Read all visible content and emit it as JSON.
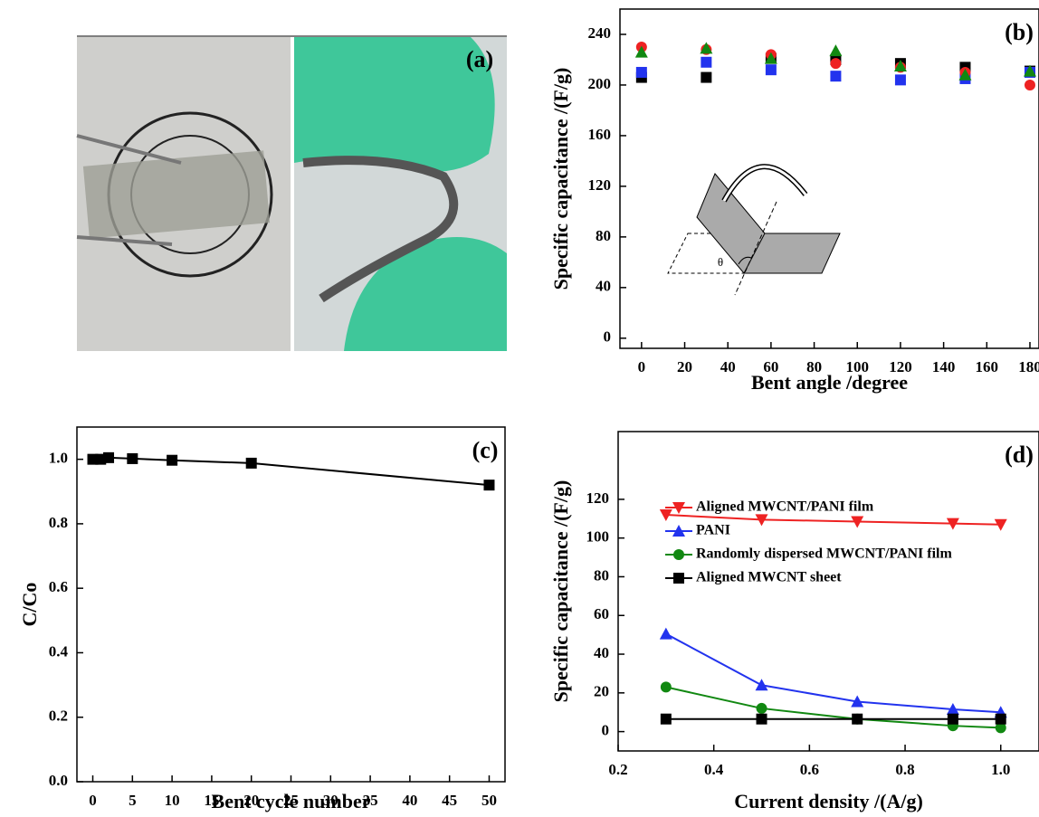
{
  "chart_data": [
    {
      "type": "image",
      "title": "(a)"
    },
    {
      "type": "scatter",
      "title": "(b)",
      "xlabel": "Bent angle /degree",
      "ylabel": "Specific capacitance /(F/g)",
      "inset_label": "θ",
      "xlim": [
        -10,
        184.2
      ],
      "xticks": [
        0,
        20,
        40,
        60,
        80,
        100,
        120,
        140,
        160,
        180
      ],
      "ylim": [
        -8,
        260
      ],
      "yticks": [
        0,
        40,
        80,
        120,
        160,
        200,
        240
      ],
      "x": [
        0,
        30,
        60,
        90,
        120,
        150,
        180
      ],
      "series": [
        {
          "color": "#000000",
          "marker": "square",
          "values": [
            206,
            206,
            221,
            220,
            217,
            214,
            211
          ]
        },
        {
          "color": "#2233ee",
          "marker": "square",
          "values": [
            210,
            218,
            212,
            207,
            204,
            205,
            210
          ]
        },
        {
          "color": "#ee2222",
          "marker": "circle",
          "values": [
            230,
            228,
            224,
            217,
            214,
            210,
            200
          ]
        },
        {
          "color": "#118811",
          "marker": "triangle",
          "values": [
            226,
            229,
            221,
            227,
            215,
            208,
            211
          ]
        }
      ]
    },
    {
      "type": "line",
      "title": "(c)",
      "xlabel": "Bent cycle number",
      "ylabel": "C/Co",
      "xlim": [
        -2,
        52
      ],
      "xticks": [
        0,
        5,
        10,
        15,
        20,
        25,
        30,
        35,
        40,
        45,
        50
      ],
      "ylim": [
        0,
        1.1
      ],
      "yticks": [
        {
          "value": 0,
          "label": "0.0"
        },
        0.2,
        0.4,
        0.6,
        0.8,
        {
          "value": 1,
          "label": "1.0"
        }
      ],
      "x": [
        0,
        1,
        2,
        5,
        10,
        20,
        50
      ],
      "series": [
        {
          "color": "#000000",
          "marker": "square",
          "values": [
            1.0,
            1.0,
            1.005,
            1.002,
            0.997,
            0.988,
            0.92
          ]
        }
      ]
    },
    {
      "type": "line",
      "title": "(d)",
      "xlabel": "Current density /(A/g)",
      "ylabel": "Specific capacitance /(F/g)",
      "legend": "center left",
      "xlim": [
        0.2,
        1.08
      ],
      "xticks": [
        0.2,
        0.4,
        0.6,
        0.8,
        {
          "value": 1,
          "label": "1.0"
        }
      ],
      "ylim": [
        -10,
        155
      ],
      "yticks": [
        0,
        20,
        40,
        60,
        80,
        100,
        120
      ],
      "x": [
        0.3,
        0.5,
        0.7,
        0.9,
        1.0
      ],
      "series": [
        {
          "name": "Aligned MWCNT/PANI film",
          "color": "#ee2222",
          "marker": "down-triangle",
          "values": [
            112,
            109.5,
            108.5,
            107.5,
            107
          ]
        },
        {
          "name": "PANI",
          "color": "#2233ee",
          "marker": "triangle",
          "values": [
            50.5,
            24,
            15.5,
            11.5,
            10
          ]
        },
        {
          "name": "Randomly dispersed MWCNT/PANI film",
          "color": "#118811",
          "marker": "circle",
          "values": [
            23,
            12,
            6.5,
            3,
            2
          ]
        },
        {
          "name": "Aligned MWCNT sheet",
          "color": "#000000",
          "marker": "square",
          "values": [
            6.5,
            6.5,
            6.5,
            6.5,
            6.5
          ]
        }
      ]
    }
  ]
}
